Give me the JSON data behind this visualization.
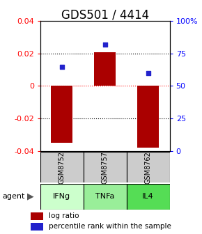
{
  "title": "GDS501 / 4414",
  "samples": [
    "GSM8752",
    "GSM8757",
    "GSM8762"
  ],
  "agents": [
    "IFNg",
    "TNFa",
    "IL4"
  ],
  "log_ratios": [
    -0.035,
    0.021,
    -0.038
  ],
  "percentiles": [
    0.65,
    0.82,
    0.6
  ],
  "ylim_left": [
    -0.04,
    0.04
  ],
  "ylim_right": [
    0,
    1
  ],
  "yticks_left": [
    -0.04,
    -0.02,
    0,
    0.02,
    0.04
  ],
  "yticks_right": [
    0,
    0.25,
    0.5,
    0.75,
    1.0
  ],
  "ytick_labels_right": [
    "0",
    "25",
    "50",
    "75",
    "100%"
  ],
  "bar_color": "#aa0000",
  "dot_color": "#2222cc",
  "sample_bg": "#cccccc",
  "agent_colors": [
    "#ccffcc",
    "#99ee99",
    "#55dd55"
  ],
  "title_fontsize": 12,
  "tick_fontsize": 8,
  "legend_fontsize": 7.5
}
